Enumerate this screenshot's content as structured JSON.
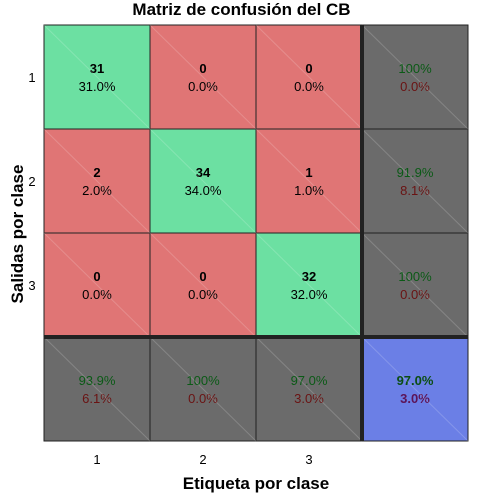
{
  "chart_data": {
    "type": "heatmap",
    "title": "Matriz de confusión del CB",
    "xlabel": "Etiqueta por clase",
    "ylabel": "Salidas por clase",
    "x_tick_labels": [
      "1",
      "2",
      "3"
    ],
    "y_tick_labels": [
      "1",
      "2",
      "3"
    ],
    "cells": [
      [
        {
          "count": "31",
          "percent": "31.0%"
        },
        {
          "count": "0",
          "percent": "0.0%"
        },
        {
          "count": "0",
          "percent": "0.0%"
        }
      ],
      [
        {
          "count": "2",
          "percent": "2.0%"
        },
        {
          "count": "34",
          "percent": "34.0%"
        },
        {
          "count": "1",
          "percent": "1.0%"
        }
      ],
      [
        {
          "count": "0",
          "percent": "0.0%"
        },
        {
          "count": "0",
          "percent": "0.0%"
        },
        {
          "count": "32",
          "percent": "32.0%"
        }
      ]
    ],
    "row_summary": [
      {
        "correct": "100%",
        "error": "0.0%"
      },
      {
        "correct": "91.9%",
        "error": "8.1%"
      },
      {
        "correct": "100%",
        "error": "0.0%"
      }
    ],
    "column_summary": [
      {
        "correct": "93.9%",
        "error": "6.1%"
      },
      {
        "correct": "100%",
        "error": "0.0%"
      },
      {
        "correct": "97.0%",
        "error": "3.0%"
      }
    ],
    "overall": {
      "correct": "97.0%",
      "error": "3.0%"
    },
    "colors": {
      "correct_cell": "#6ce0a2",
      "error_cell": "#e07575",
      "summary_cell": "#6b6b6b",
      "overall_cell": "#6b7fe6",
      "correct_text": "#0b5a16",
      "error_text": "#6a1313",
      "overall_correct_text": "#0b4d12",
      "overall_error_text": "#5c1458"
    }
  }
}
